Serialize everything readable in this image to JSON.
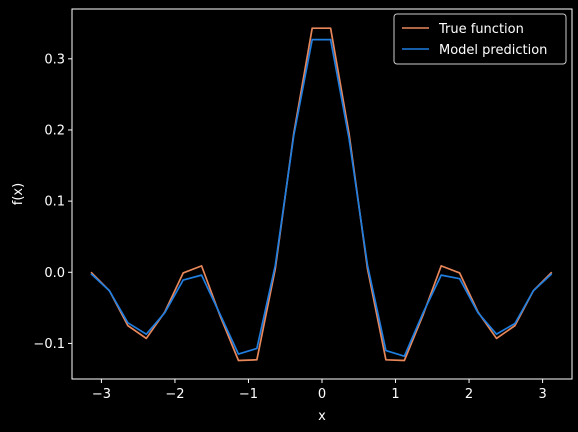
{
  "chart_data": {
    "type": "line",
    "title": "",
    "xlabel": "x",
    "ylabel": "f(x)",
    "xlim": [
      -3.4,
      3.4
    ],
    "ylim": [
      -0.15,
      0.37
    ],
    "xticks": [
      -3,
      -2,
      -1,
      0,
      1,
      2,
      3
    ],
    "xtick_labels": [
      "−3",
      "−2",
      "−1",
      "0",
      "1",
      "2",
      "3"
    ],
    "yticks": [
      -0.1,
      0.0,
      0.1,
      0.2,
      0.3
    ],
    "ytick_labels": [
      "−0.1",
      "0.0",
      "0.1",
      "0.2",
      "0.3"
    ],
    "grid": false,
    "legend_position": "top-right",
    "background": "#000000",
    "x": [
      -3.1416,
      -2.8909,
      -2.6403,
      -2.3896,
      -2.1389,
      -1.8882,
      -1.6376,
      -1.3869,
      -1.1362,
      -0.8856,
      -0.6349,
      -0.3842,
      -0.1335,
      0.1171,
      0.3678,
      0.6185,
      0.8692,
      1.1198,
      1.3705,
      1.6212,
      1.8718,
      2.1225,
      2.3732,
      2.6239,
      2.8745,
      3.1252
    ],
    "series": [
      {
        "name": "True function",
        "color": "#e8875a",
        "values": [
          0.0,
          -0.026,
          -0.075,
          -0.093,
          -0.056,
          -0.001,
          0.009,
          -0.061,
          -0.124,
          -0.123,
          0.005,
          0.195,
          0.343,
          0.343,
          0.195,
          0.005,
          -0.123,
          -0.124,
          -0.061,
          0.009,
          -0.001,
          -0.056,
          -0.093,
          -0.075,
          -0.026,
          0.0
        ]
      },
      {
        "name": "Model prediction",
        "color": "#1f7ee0",
        "values": [
          -0.002,
          -0.026,
          -0.071,
          -0.087,
          -0.057,
          -0.011,
          -0.004,
          -0.059,
          -0.115,
          -0.107,
          0.01,
          0.192,
          0.327,
          0.327,
          0.188,
          0.01,
          -0.11,
          -0.118,
          -0.058,
          -0.004,
          -0.009,
          -0.057,
          -0.087,
          -0.072,
          -0.026,
          -0.002
        ]
      }
    ]
  }
}
